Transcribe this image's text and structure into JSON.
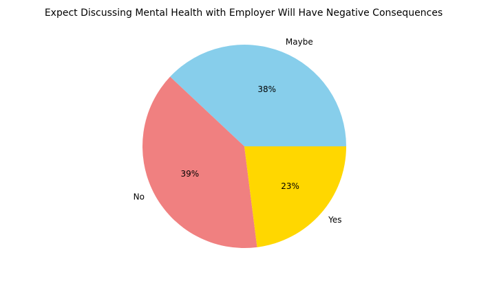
{
  "chart_data": {
    "type": "pie",
    "title": "Expect Discussing Mental Health with Employer Will Have Negative Consequences",
    "start_angle_deg": 0,
    "direction": "counterclockwise",
    "slices": [
      {
        "label": "Maybe",
        "value": 38.0,
        "pct_label": "38%",
        "color": "#87CEEB"
      },
      {
        "label": "No",
        "value": 39.0,
        "pct_label": "39%",
        "color": "#F08080"
      },
      {
        "label": "Yes",
        "value": 23.0,
        "pct_label": "23%",
        "color": "#FFD700"
      }
    ],
    "legend": "none"
  }
}
